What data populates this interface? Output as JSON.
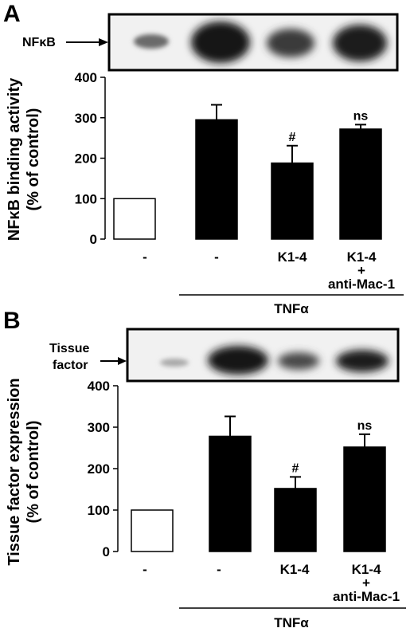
{
  "chart_data": [
    {
      "panel": "A",
      "type": "bar",
      "blot_label": "NFκB",
      "ylabel": "NFκB binding activity",
      "ylabel_sub": "(% of control)",
      "ylim": [
        0,
        400
      ],
      "yticks": [
        "0",
        "100",
        "200",
        "300",
        "400"
      ],
      "categories": [
        "-",
        "-",
        "K1-4",
        "K1-4",
        "+",
        "anti-Mac-1"
      ],
      "bars": [
        {
          "label": "-",
          "value": 100,
          "error": 0,
          "fill": "open",
          "annotation": ""
        },
        {
          "label": "-",
          "value": 295,
          "error": 37,
          "fill": "filled",
          "annotation": ""
        },
        {
          "label": "K1-4",
          "value": 188,
          "error": 43,
          "fill": "filled",
          "annotation": "#"
        },
        {
          "label": "K1-4 + anti-Mac-1",
          "value": 272,
          "error": 11,
          "fill": "filled",
          "annotation": "ns"
        }
      ],
      "treatment": "TNFα"
    },
    {
      "panel": "B",
      "type": "bar",
      "blot_label": "Tissue factor",
      "ylabel": "Tissue factor expression",
      "ylabel_sub": "(% of control)",
      "ylim": [
        0,
        400
      ],
      "yticks": [
        "0",
        "100",
        "200",
        "300",
        "400"
      ],
      "bars": [
        {
          "label": "-",
          "value": 100,
          "error": 0,
          "fill": "open",
          "annotation": ""
        },
        {
          "label": "-",
          "value": 278,
          "error": 48,
          "fill": "filled",
          "annotation": ""
        },
        {
          "label": "K1-4",
          "value": 152,
          "error": 28,
          "fill": "filled",
          "annotation": "#"
        },
        {
          "label": "K1-4 + anti-Mac-1",
          "value": 252,
          "error": 31,
          "fill": "filled",
          "annotation": "ns"
        }
      ],
      "treatment": "TNFα"
    }
  ],
  "labels": {
    "panelA": "A",
    "panelB": "B",
    "blotA": "NFκB",
    "blotB_line1": "Tissue",
    "blotB_line2": "factor",
    "ylabelA_1": "NFκB binding activity",
    "ylabelA_2": "(% of control)",
    "ylabelB_1": "Tissue factor expression",
    "ylabelB_2": "(% of control)",
    "cat_minus": "-",
    "cat_k14": "K1-4",
    "cat_plus": "+",
    "cat_antimac": "anti-Mac-1",
    "treatment": "TNFα"
  },
  "colors": {
    "bar_fill": "#000000",
    "open_fill": "#ffffff",
    "blot_bg": "#f2f2f2"
  }
}
